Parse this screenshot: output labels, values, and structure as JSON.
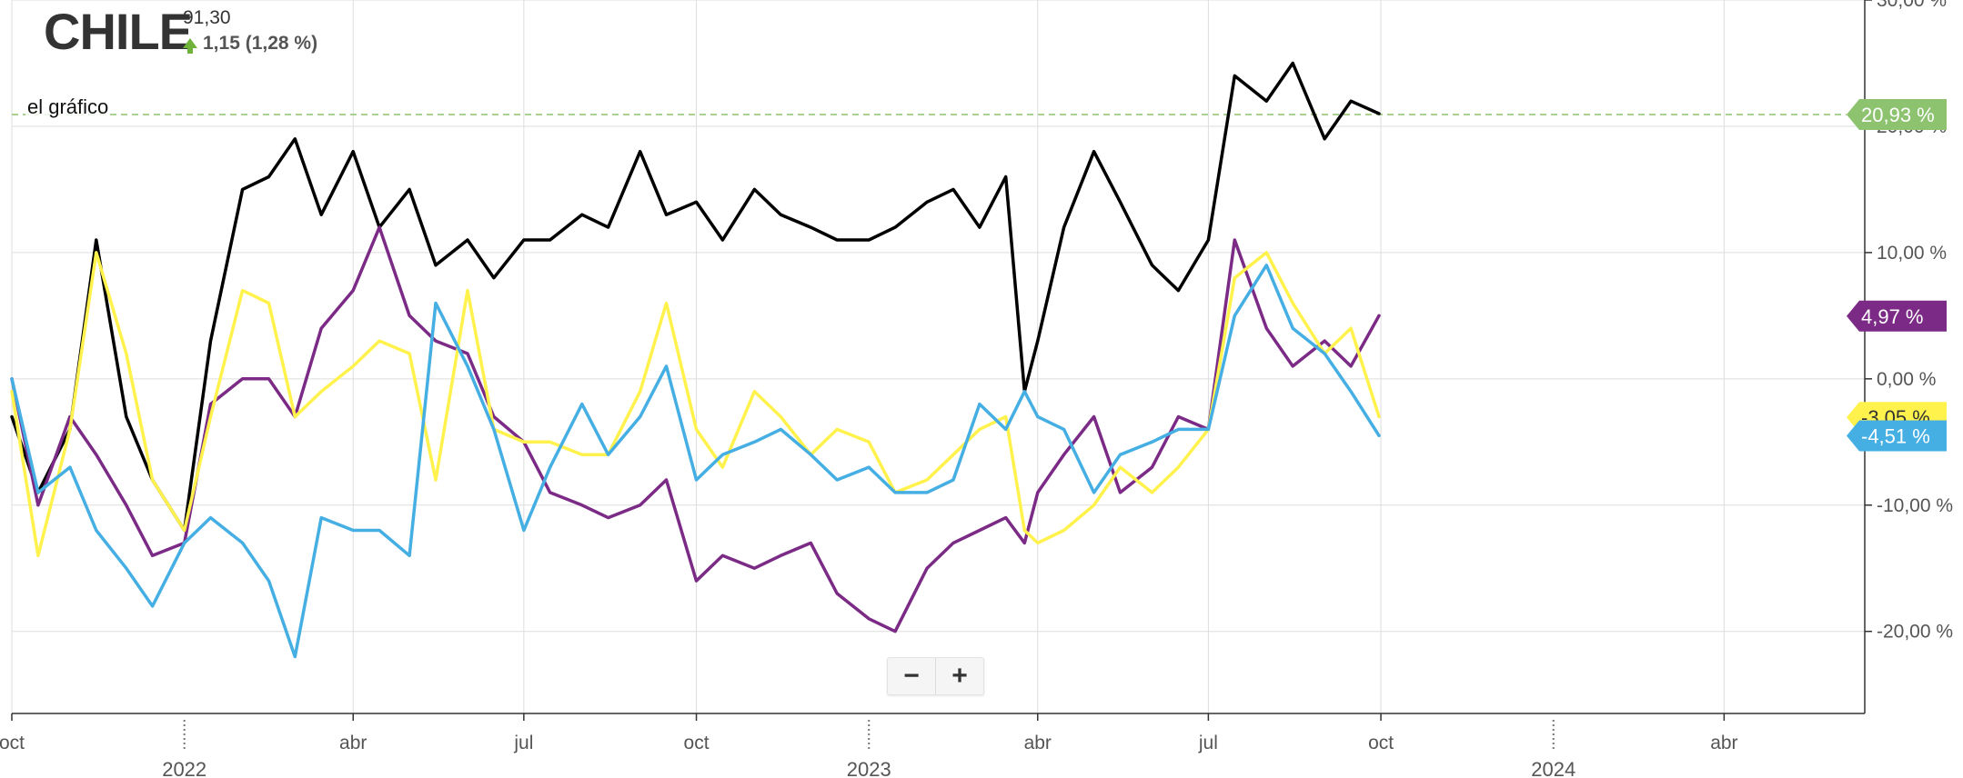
{
  "header": {
    "title": "CHILE",
    "price": "91,30",
    "change": "1,15 (1,28 %)"
  },
  "legend": {
    "label": "el gráfico"
  },
  "zoom": {
    "minus": "−",
    "plus": "+"
  },
  "colors": {
    "black": "#000000",
    "purple": "#7b2a86",
    "yellow": "#fff24d",
    "blue": "#45aee3",
    "green": "#8dc26f",
    "grid": "#dddddd"
  },
  "chart_data": {
    "type": "line",
    "ylabel": "",
    "ylim": [
      -26.5,
      30
    ],
    "y_ticks": [
      "30,00 %",
      "20,00 %",
      "10,00 %",
      "0,00 %",
      "-10,00 %",
      "-20,00 %"
    ],
    "y_tick_values": [
      30,
      20,
      10,
      0,
      -10,
      -20
    ],
    "x_ticks": [
      {
        "label": "oct",
        "date": "2021-10-01"
      },
      {
        "label": "",
        "date": "2022-01-01",
        "year": "2022"
      },
      {
        "label": "abr",
        "date": "2022-04-01"
      },
      {
        "label": "jul",
        "date": "2022-07-01"
      },
      {
        "label": "oct",
        "date": "2022-10-01"
      },
      {
        "label": "",
        "date": "2023-01-01",
        "year": "2023"
      },
      {
        "label": "abr",
        "date": "2023-04-01"
      },
      {
        "label": "jul",
        "date": "2023-07-01"
      },
      {
        "label": "oct",
        "date": "2023-10-01"
      },
      {
        "label": "",
        "date": "2024-01-01",
        "year": "2024"
      },
      {
        "label": "abr",
        "date": "2024-04-01"
      }
    ],
    "xlim": [
      "2021-10-01",
      "2024-06-15"
    ],
    "reference_line": {
      "value": 20.93,
      "label": "20,93 %",
      "color": "#8dc26f"
    },
    "end_labels": [
      {
        "series": "purple",
        "value": 4.97,
        "label": "4,97 %",
        "color": "#7b2a86"
      },
      {
        "series": "yellow",
        "value": -3.05,
        "label": "-3,05 %",
        "color": "#fff24d"
      },
      {
        "series": "blue",
        "value": -4.51,
        "label": "-4,51 %",
        "color": "#45aee3"
      }
    ],
    "series": [
      {
        "color": "#000000",
        "x": [
          "2021-10-01",
          "2021-10-15",
          "2021-11-01",
          "2021-11-15",
          "2021-12-01",
          "2021-12-15",
          "2022-01-01",
          "2022-01-15",
          "2022-02-01",
          "2022-02-15",
          "2022-03-01",
          "2022-03-15",
          "2022-04-01",
          "2022-04-15",
          "2022-05-01",
          "2022-05-15",
          "2022-06-01",
          "2022-06-15",
          "2022-07-01",
          "2022-07-15",
          "2022-08-01",
          "2022-08-15",
          "2022-09-01",
          "2022-09-15",
          "2022-10-01",
          "2022-10-15",
          "2022-11-01",
          "2022-11-15",
          "2022-12-01",
          "2022-12-15",
          "2023-01-01",
          "2023-01-15",
          "2023-02-01",
          "2023-02-15",
          "2023-03-01",
          "2023-03-15",
          "2023-03-25",
          "2023-04-01",
          "2023-04-15",
          "2023-05-01",
          "2023-05-15",
          "2023-06-01",
          "2023-06-15",
          "2023-07-01",
          "2023-07-15",
          "2023-08-01",
          "2023-08-15",
          "2023-09-01",
          "2023-09-15",
          "2023-09-30"
        ],
        "y": [
          -3,
          -9,
          -4,
          11,
          -3,
          -8,
          -12,
          3,
          15,
          16,
          19,
          13,
          18,
          12,
          15,
          9,
          11,
          8,
          11,
          11,
          13,
          12,
          18,
          13,
          14,
          11,
          15,
          13,
          12,
          11,
          11,
          12,
          14,
          15,
          12,
          16,
          -1,
          3,
          12,
          18,
          14,
          9,
          7,
          11,
          24,
          22,
          25,
          19,
          22,
          21
        ]
      },
      {
        "color": "#7b2a86",
        "x": [
          "2021-10-01",
          "2021-10-15",
          "2021-11-01",
          "2021-11-15",
          "2021-12-01",
          "2021-12-15",
          "2022-01-01",
          "2022-01-15",
          "2022-02-01",
          "2022-02-15",
          "2022-03-01",
          "2022-03-15",
          "2022-04-01",
          "2022-04-15",
          "2022-05-01",
          "2022-05-15",
          "2022-06-01",
          "2022-06-15",
          "2022-07-01",
          "2022-07-15",
          "2022-08-01",
          "2022-08-15",
          "2022-09-01",
          "2022-09-15",
          "2022-10-01",
          "2022-10-15",
          "2022-11-01",
          "2022-11-15",
          "2022-12-01",
          "2022-12-15",
          "2023-01-01",
          "2023-01-15",
          "2023-02-01",
          "2023-02-15",
          "2023-03-01",
          "2023-03-15",
          "2023-03-25",
          "2023-04-01",
          "2023-04-15",
          "2023-05-01",
          "2023-05-15",
          "2023-06-01",
          "2023-06-15",
          "2023-07-01",
          "2023-07-15",
          "2023-08-01",
          "2023-08-15",
          "2023-09-01",
          "2023-09-15",
          "2023-09-30"
        ],
        "y": [
          0,
          -10,
          -3,
          -6,
          -10,
          -14,
          -13,
          -2,
          0,
          0,
          -3,
          4,
          7,
          12,
          5,
          3,
          2,
          -3,
          -5,
          -9,
          -10,
          -11,
          -10,
          -8,
          -16,
          -14,
          -15,
          -14,
          -13,
          -17,
          -19,
          -20,
          -15,
          -13,
          -12,
          -11,
          -13,
          -9,
          -6,
          -3,
          -9,
          -7,
          -3,
          -4,
          11,
          4,
          1,
          3,
          1,
          5
        ]
      },
      {
        "color": "#fff24d",
        "x": [
          "2021-10-01",
          "2021-10-15",
          "2021-11-01",
          "2021-11-15",
          "2021-12-01",
          "2021-12-15",
          "2022-01-01",
          "2022-01-15",
          "2022-02-01",
          "2022-02-15",
          "2022-03-01",
          "2022-03-15",
          "2022-04-01",
          "2022-04-15",
          "2022-05-01",
          "2022-05-15",
          "2022-06-01",
          "2022-06-15",
          "2022-07-01",
          "2022-07-15",
          "2022-08-01",
          "2022-08-15",
          "2022-09-01",
          "2022-09-15",
          "2022-10-01",
          "2022-10-15",
          "2022-11-01",
          "2022-11-15",
          "2022-12-01",
          "2022-12-15",
          "2023-01-01",
          "2023-01-15",
          "2023-02-01",
          "2023-02-15",
          "2023-03-01",
          "2023-03-15",
          "2023-03-25",
          "2023-04-01",
          "2023-04-15",
          "2023-05-01",
          "2023-05-15",
          "2023-06-01",
          "2023-06-15",
          "2023-07-01",
          "2023-07-15",
          "2023-08-01",
          "2023-08-15",
          "2023-09-01",
          "2023-09-15",
          "2023-09-30"
        ],
        "y": [
          -1,
          -14,
          -4,
          10,
          2,
          -8,
          -12,
          -3,
          7,
          6,
          -3,
          -1,
          1,
          3,
          2,
          -8,
          7,
          -4,
          -5,
          -5,
          -6,
          -6,
          -1,
          6,
          -4,
          -7,
          -1,
          -3,
          -6,
          -4,
          -5,
          -9,
          -8,
          -6,
          -4,
          -3,
          -12,
          -13,
          -12,
          -10,
          -7,
          -9,
          -7,
          -4,
          8,
          10,
          6,
          2,
          4,
          -3
        ]
      },
      {
        "color": "#45aee3",
        "x": [
          "2021-10-01",
          "2021-10-15",
          "2021-11-01",
          "2021-11-15",
          "2021-12-01",
          "2021-12-15",
          "2022-01-01",
          "2022-01-15",
          "2022-02-01",
          "2022-02-15",
          "2022-03-01",
          "2022-03-15",
          "2022-04-01",
          "2022-04-15",
          "2022-05-01",
          "2022-05-15",
          "2022-06-01",
          "2022-06-15",
          "2022-07-01",
          "2022-07-15",
          "2022-08-01",
          "2022-08-15",
          "2022-09-01",
          "2022-09-15",
          "2022-10-01",
          "2022-10-15",
          "2022-11-01",
          "2022-11-15",
          "2022-12-01",
          "2022-12-15",
          "2023-01-01",
          "2023-01-15",
          "2023-02-01",
          "2023-02-15",
          "2023-03-01",
          "2023-03-15",
          "2023-03-25",
          "2023-04-01",
          "2023-04-15",
          "2023-05-01",
          "2023-05-15",
          "2023-06-01",
          "2023-06-15",
          "2023-07-01",
          "2023-07-15",
          "2023-08-01",
          "2023-08-15",
          "2023-09-01",
          "2023-09-15",
          "2023-09-30"
        ],
        "y": [
          0,
          -9,
          -7,
          -12,
          -15,
          -18,
          -13,
          -11,
          -13,
          -16,
          -22,
          -11,
          -12,
          -12,
          -14,
          6,
          1,
          -4,
          -12,
          -7,
          -2,
          -6,
          -3,
          1,
          -8,
          -6,
          -5,
          -4,
          -6,
          -8,
          -7,
          -9,
          -9,
          -8,
          -2,
          -4,
          -1,
          -3,
          -4,
          -9,
          -6,
          -5,
          -4,
          -4,
          5,
          9,
          4,
          2,
          -1,
          -4.5
        ]
      }
    ]
  }
}
